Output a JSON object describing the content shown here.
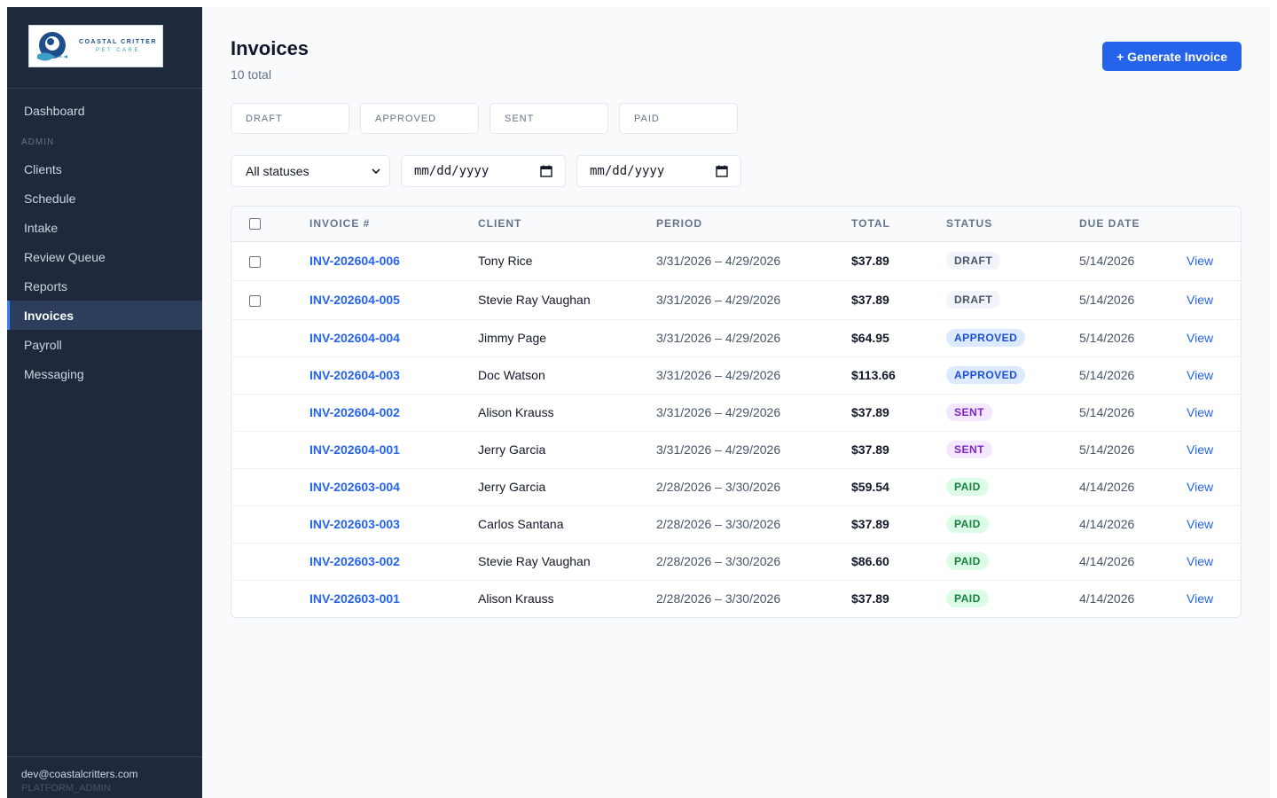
{
  "brand": {
    "name_line1": "COASTAL CRITTER",
    "name_line2": "PET CARE"
  },
  "sidebar": {
    "top_item": "Dashboard",
    "section_label": "ADMIN",
    "items": [
      {
        "label": "Clients",
        "active": false
      },
      {
        "label": "Schedule",
        "active": false
      },
      {
        "label": "Intake",
        "active": false
      },
      {
        "label": "Review Queue",
        "active": false
      },
      {
        "label": "Reports",
        "active": false
      },
      {
        "label": "Invoices",
        "active": true
      },
      {
        "label": "Payroll",
        "active": false
      },
      {
        "label": "Messaging",
        "active": false
      }
    ],
    "user": {
      "email": "dev@coastalcritters.com",
      "role": "PLATFORM_ADMIN"
    }
  },
  "header": {
    "title": "Invoices",
    "subtitle": "10 total",
    "generate_label": "+ Generate Invoice"
  },
  "status_cards": [
    "DRAFT",
    "APPROVED",
    "SENT",
    "PAID"
  ],
  "filters": {
    "status_select": "All statuses",
    "date_from": "mm/dd/yyyy",
    "date_to": "mm/dd/yyyy"
  },
  "table": {
    "columns": [
      "INVOICE #",
      "CLIENT",
      "PERIOD",
      "TOTAL",
      "STATUS",
      "DUE DATE"
    ],
    "action_label": "View",
    "rows": [
      {
        "invoice": "INV-202604-006",
        "client": "Tony Rice",
        "period": "3/31/2026 – 4/29/2026",
        "total": "$37.89",
        "status": "DRAFT",
        "due": "5/14/2026",
        "selectable": true
      },
      {
        "invoice": "INV-202604-005",
        "client": "Stevie Ray Vaughan",
        "period": "3/31/2026 – 4/29/2026",
        "total": "$37.89",
        "status": "DRAFT",
        "due": "5/14/2026",
        "selectable": true
      },
      {
        "invoice": "INV-202604-004",
        "client": "Jimmy Page",
        "period": "3/31/2026 – 4/29/2026",
        "total": "$64.95",
        "status": "APPROVED",
        "due": "5/14/2026",
        "selectable": false
      },
      {
        "invoice": "INV-202604-003",
        "client": "Doc Watson",
        "period": "3/31/2026 – 4/29/2026",
        "total": "$113.66",
        "status": "APPROVED",
        "due": "5/14/2026",
        "selectable": false
      },
      {
        "invoice": "INV-202604-002",
        "client": "Alison Krauss",
        "period": "3/31/2026 – 4/29/2026",
        "total": "$37.89",
        "status": "SENT",
        "due": "5/14/2026",
        "selectable": false
      },
      {
        "invoice": "INV-202604-001",
        "client": "Jerry Garcia",
        "period": "3/31/2026 – 4/29/2026",
        "total": "$37.89",
        "status": "SENT",
        "due": "5/14/2026",
        "selectable": false
      },
      {
        "invoice": "INV-202603-004",
        "client": "Jerry Garcia",
        "period": "2/28/2026 – 3/30/2026",
        "total": "$59.54",
        "status": "PAID",
        "due": "4/14/2026",
        "selectable": false
      },
      {
        "invoice": "INV-202603-003",
        "client": "Carlos Santana",
        "period": "2/28/2026 – 3/30/2026",
        "total": "$37.89",
        "status": "PAID",
        "due": "4/14/2026",
        "selectable": false
      },
      {
        "invoice": "INV-202603-002",
        "client": "Stevie Ray Vaughan",
        "period": "2/28/2026 – 3/30/2026",
        "total": "$86.60",
        "status": "PAID",
        "due": "4/14/2026",
        "selectable": false
      },
      {
        "invoice": "INV-202603-001",
        "client": "Alison Krauss",
        "period": "2/28/2026 – 3/30/2026",
        "total": "$37.89",
        "status": "PAID",
        "due": "4/14/2026",
        "selectable": false
      }
    ]
  },
  "colors": {
    "sidebar_bg": "#1e293b",
    "accent": "#2563eb",
    "draft": "#475569",
    "approved": "#1d4ed8",
    "sent": "#7e22ce",
    "paid": "#15803d"
  },
  "icons": [
    "logo-mark-icon",
    "chevron-down-icon",
    "calendar-icon",
    "checkbox-icon"
  ]
}
